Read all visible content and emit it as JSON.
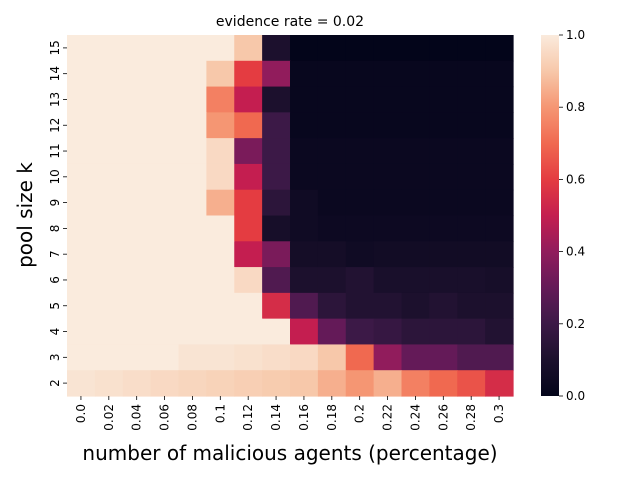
{
  "chart_data": {
    "type": "heatmap",
    "title": "evidence rate = 0.02",
    "xlabel": "number of malicious agents (percentage)",
    "ylabel": "pool size k",
    "x": [
      "0.0",
      "0.02",
      "0.04",
      "0.06",
      "0.08",
      "0.1",
      "0.12",
      "0.14",
      "0.16",
      "0.18",
      "0.2",
      "0.22",
      "0.24",
      "0.26",
      "0.28",
      "0.3"
    ],
    "y": [
      "15",
      "14",
      "13",
      "12",
      "11",
      "10",
      "9",
      "8",
      "7",
      "6",
      "5",
      "4",
      "3",
      "2"
    ],
    "values": [
      [
        1.0,
        1.0,
        1.0,
        1.0,
        1.0,
        1.0,
        0.9,
        0.1,
        0.0,
        0.0,
        0.0,
        0.0,
        0.0,
        0.0,
        0.0,
        0.0
      ],
      [
        1.0,
        1.0,
        1.0,
        1.0,
        1.0,
        0.9,
        0.6,
        0.4,
        0.02,
        0.02,
        0.02,
        0.02,
        0.02,
        0.02,
        0.02,
        0.02
      ],
      [
        1.0,
        1.0,
        1.0,
        1.0,
        1.0,
        0.75,
        0.5,
        0.1,
        0.02,
        0.02,
        0.02,
        0.02,
        0.02,
        0.02,
        0.02,
        0.02
      ],
      [
        1.0,
        1.0,
        1.0,
        1.0,
        1.0,
        0.8,
        0.7,
        0.2,
        0.02,
        0.02,
        0.02,
        0.02,
        0.02,
        0.02,
        0.02,
        0.02
      ],
      [
        1.0,
        1.0,
        1.0,
        1.0,
        1.0,
        0.95,
        0.35,
        0.2,
        0.03,
        0.03,
        0.03,
        0.03,
        0.03,
        0.03,
        0.03,
        0.03
      ],
      [
        1.0,
        1.0,
        1.0,
        1.0,
        1.0,
        0.95,
        0.5,
        0.2,
        0.03,
        0.03,
        0.03,
        0.03,
        0.03,
        0.03,
        0.03,
        0.03
      ],
      [
        1.0,
        1.0,
        1.0,
        1.0,
        1.0,
        0.85,
        0.6,
        0.15,
        0.05,
        0.03,
        0.03,
        0.03,
        0.03,
        0.03,
        0.03,
        0.03
      ],
      [
        1.0,
        1.0,
        1.0,
        1.0,
        1.0,
        1.0,
        0.6,
        0.08,
        0.05,
        0.04,
        0.04,
        0.04,
        0.04,
        0.04,
        0.04,
        0.04
      ],
      [
        1.0,
        1.0,
        1.0,
        1.0,
        1.0,
        1.0,
        0.5,
        0.35,
        0.07,
        0.07,
        0.05,
        0.06,
        0.06,
        0.06,
        0.06,
        0.06
      ],
      [
        1.0,
        1.0,
        1.0,
        1.0,
        1.0,
        1.0,
        0.95,
        0.25,
        0.1,
        0.1,
        0.12,
        0.09,
        0.09,
        0.09,
        0.09,
        0.08
      ],
      [
        1.0,
        1.0,
        1.0,
        1.0,
        1.0,
        1.0,
        1.0,
        0.55,
        0.25,
        0.15,
        0.12,
        0.12,
        0.1,
        0.12,
        0.1,
        0.1
      ],
      [
        1.0,
        1.0,
        1.0,
        1.0,
        1.0,
        1.0,
        1.0,
        1.0,
        0.5,
        0.3,
        0.2,
        0.18,
        0.15,
        0.15,
        0.15,
        0.12
      ],
      [
        1.0,
        1.0,
        1.0,
        1.0,
        0.98,
        0.98,
        0.97,
        0.96,
        0.95,
        0.9,
        0.7,
        0.4,
        0.3,
        0.3,
        0.25,
        0.25
      ],
      [
        0.98,
        0.97,
        0.96,
        0.95,
        0.94,
        0.93,
        0.92,
        0.91,
        0.9,
        0.85,
        0.8,
        0.85,
        0.75,
        0.7,
        0.65,
        0.55
      ]
    ],
    "zlim": [
      0.0,
      1.0
    ],
    "colorbar_ticks": [
      "0.0",
      "0.2",
      "0.4",
      "0.6",
      "0.8",
      "1.0"
    ],
    "colormap": "rocket"
  }
}
